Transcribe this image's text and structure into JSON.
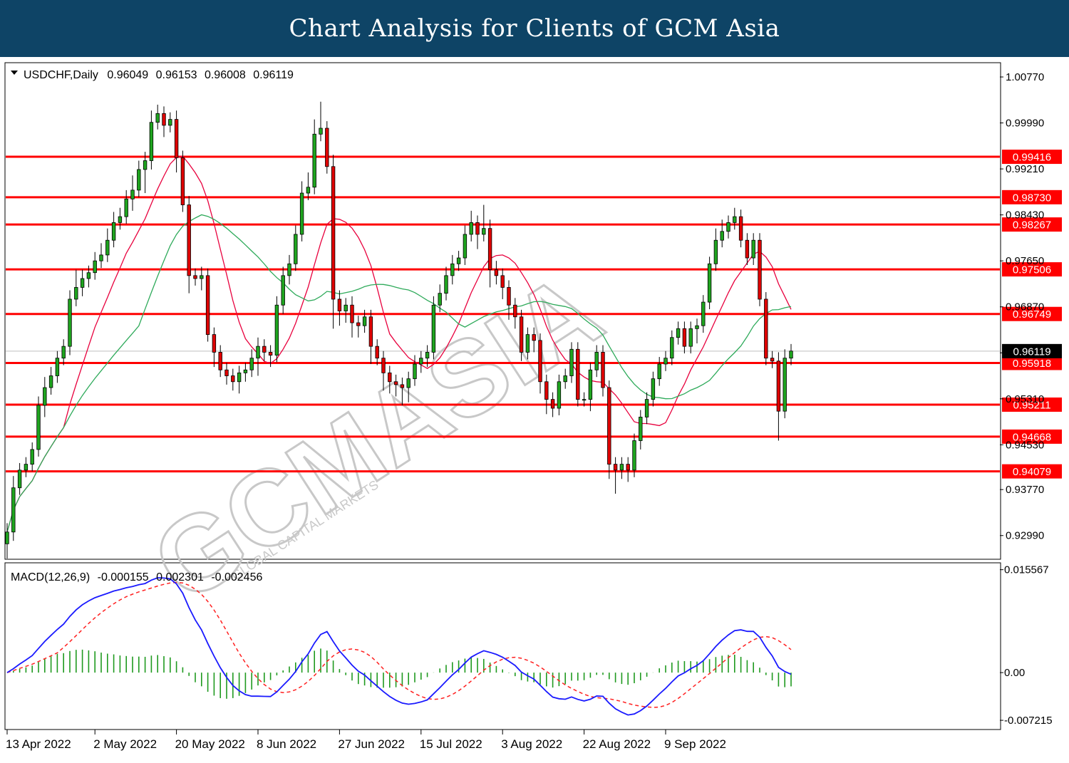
{
  "header": {
    "title": "Chart Analysis for Clients of GCM Asia"
  },
  "watermark": {
    "brand": "GCMASIA",
    "sub": "GLOBAL CAPITAL MARKETS",
    "icon": "gcm-logo-watermark"
  },
  "chart_data": [
    {
      "type": "candlestick",
      "title": "USDCHF,Daily",
      "ohlc_readout": [
        "0.96049",
        "0.96153",
        "0.96008",
        "0.96119"
      ],
      "ylim": [
        0.926,
        1.01
      ],
      "y_ticks": [
        "1.00770",
        "0.99990",
        "0.99210",
        "0.98430",
        "0.97650",
        "0.96870",
        "0.96090",
        "0.95310",
        "0.94530",
        "0.93770",
        "0.92990"
      ],
      "y_tick_values": [
        1.0077,
        0.9999,
        0.9921,
        0.9843,
        0.9765,
        0.9687,
        0.9609,
        0.9531,
        0.9453,
        0.9377,
        0.9299
      ],
      "current_price": {
        "value": 0.96119,
        "label": "0.96119"
      },
      "levels": [
        {
          "value": 0.99416,
          "label": "0.99416"
        },
        {
          "value": 0.9873,
          "label": "0.98730"
        },
        {
          "value": 0.98267,
          "label": "0.98267"
        },
        {
          "value": 0.97506,
          "label": "0.97506"
        },
        {
          "value": 0.96749,
          "label": "0.96749"
        },
        {
          "value": 0.95918,
          "label": "0.95918"
        },
        {
          "value": 0.95211,
          "label": "0.95211"
        },
        {
          "value": 0.94668,
          "label": "0.94668"
        },
        {
          "value": 0.94079,
          "label": "0.94079"
        }
      ],
      "x_labels": [
        {
          "index": 0,
          "label": "13 Apr 2022"
        },
        {
          "index": 14,
          "label": "2 May 2022"
        },
        {
          "index": 27,
          "label": "20 May 2022"
        },
        {
          "index": 40,
          "label": "8 Jun 2022"
        },
        {
          "index": 53,
          "label": "27 Jun 2022"
        },
        {
          "index": 66,
          "label": "15 Jul 2022"
        },
        {
          "index": 79,
          "label": "3 Aug 2022"
        },
        {
          "index": 92,
          "label": "22 Aug 2022"
        },
        {
          "index": 105,
          "label": "9 Sep 2022"
        }
      ],
      "series": [
        {
          "name": "MA fast",
          "color": "#e8003d"
        },
        {
          "name": "MA slow",
          "color": "#2eaa5a"
        }
      ],
      "closes": [
        0.9305,
        0.938,
        0.941,
        0.942,
        0.9445,
        0.952,
        0.955,
        0.957,
        0.96,
        0.962,
        0.97,
        0.972,
        0.9735,
        0.9745,
        0.9765,
        0.9775,
        0.98,
        0.983,
        0.984,
        0.987,
        0.9885,
        0.992,
        0.9935,
        1.0,
        1.0015,
        0.9995,
        1.0005,
        0.994,
        0.986,
        0.974,
        0.9735,
        0.974,
        0.964,
        0.961,
        0.958,
        0.957,
        0.956,
        0.9575,
        0.958,
        0.96,
        0.962,
        0.961,
        0.9605,
        0.969,
        0.974,
        0.976,
        0.981,
        0.988,
        0.989,
        0.998,
        0.999,
        0.9925,
        0.97,
        0.968,
        0.969,
        0.966,
        0.9655,
        0.967,
        0.962,
        0.96,
        0.9575,
        0.956,
        0.9555,
        0.955,
        0.9565,
        0.959,
        0.96,
        0.961,
        0.969,
        0.971,
        0.974,
        0.976,
        0.977,
        0.981,
        0.983,
        0.981,
        0.982,
        0.975,
        0.974,
        0.972,
        0.969,
        0.967,
        0.961,
        0.964,
        0.963,
        0.956,
        0.953,
        0.9515,
        0.956,
        0.957,
        0.9615,
        0.953,
        0.953,
        0.958,
        0.961,
        0.955,
        0.942,
        0.941,
        0.942,
        0.941,
        0.946,
        0.95,
        0.953,
        0.9565,
        0.959,
        0.96,
        0.9635,
        0.965,
        0.962,
        0.965,
        0.9655,
        0.9695,
        0.976,
        0.98,
        0.9815,
        0.983,
        0.984,
        0.98,
        0.977,
        0.98,
        0.97,
        0.96,
        0.9595,
        0.951,
        0.96,
        0.9612
      ],
      "wick_up": [
        0.0015,
        0.002,
        0.0012,
        0.0012,
        0.0012,
        0.0015,
        0.0018,
        0.0015,
        0.0012,
        0.0012,
        0.0015,
        0.003,
        0.0015,
        0.0012,
        0.0015,
        0.002,
        0.002,
        0.0018,
        0.0015,
        0.0015,
        0.0025,
        0.0015,
        0.0015,
        0.002,
        0.0015,
        0.0012,
        0.0012,
        0.0015,
        0.0012,
        0.0015,
        0.0012,
        0.0015,
        0.0012,
        0.0012,
        0.0012,
        0.0012,
        0.0012,
        0.0012,
        0.0012,
        0.0015,
        0.0015,
        0.0012,
        0.0012,
        0.0015,
        0.0015,
        0.0015,
        0.0015,
        0.002,
        0.0025,
        0.0025,
        0.0045,
        0.0012,
        0.002,
        0.0015,
        0.0012,
        0.0015,
        0.0012,
        0.0012,
        0.0012,
        0.0012,
        0.0012,
        0.0012,
        0.0012,
        0.0012,
        0.0012,
        0.0015,
        0.0012,
        0.0012,
        0.0015,
        0.0015,
        0.0015,
        0.0015,
        0.0012,
        0.0015,
        0.002,
        0.0012,
        0.004,
        0.0015,
        0.0015,
        0.0012,
        0.0012,
        0.0012,
        0.0012,
        0.0012,
        0.0012,
        0.0012,
        0.0012,
        0.0012,
        0.0012,
        0.0012,
        0.0012,
        0.0012,
        0.0012,
        0.0012,
        0.0012,
        0.0012,
        0.0012,
        0.0012,
        0.0012,
        0.0012,
        0.0012,
        0.0012,
        0.0012,
        0.0012,
        0.0012,
        0.0012,
        0.0012,
        0.0012,
        0.0012,
        0.0012,
        0.0012,
        0.0012,
        0.0012,
        0.002,
        0.002,
        0.0012,
        0.0015,
        0.0012,
        0.0012,
        0.0012,
        0.0012,
        0.0012,
        0.0012,
        0.0015,
        0.0015,
        0.0012
      ],
      "wick_dn": [
        0.0025,
        0.0015,
        0.0012,
        0.0012,
        0.0012,
        0.0012,
        0.002,
        0.0012,
        0.0012,
        0.0012,
        0.0015,
        0.0012,
        0.0015,
        0.0015,
        0.0012,
        0.0012,
        0.0012,
        0.0012,
        0.0012,
        0.0012,
        0.002,
        0.0012,
        0.004,
        0.0015,
        0.0012,
        0.002,
        0.0012,
        0.0025,
        0.0012,
        0.003,
        0.0012,
        0.002,
        0.0012,
        0.0025,
        0.0012,
        0.0015,
        0.0015,
        0.002,
        0.0015,
        0.0012,
        0.003,
        0.0015,
        0.002,
        0.0012,
        0.0015,
        0.0015,
        0.0012,
        0.0012,
        0.0012,
        0.0012,
        0.0012,
        0.0012,
        0.005,
        0.0025,
        0.002,
        0.0025,
        0.002,
        0.0012,
        0.003,
        0.0012,
        0.003,
        0.002,
        0.002,
        0.003,
        0.0025,
        0.0012,
        0.0015,
        0.0015,
        0.0012,
        0.0012,
        0.0012,
        0.0015,
        0.0012,
        0.0012,
        0.0012,
        0.0025,
        0.0012,
        0.003,
        0.0015,
        0.002,
        0.0025,
        0.002,
        0.0015,
        0.0012,
        0.002,
        0.002,
        0.0025,
        0.0015,
        0.0012,
        0.0012,
        0.0012,
        0.0012,
        0.0012,
        0.002,
        0.0012,
        0.0015,
        0.0025,
        0.004,
        0.0015,
        0.002,
        0.0012,
        0.0015,
        0.0012,
        0.0012,
        0.0012,
        0.0012,
        0.0012,
        0.0012,
        0.0012,
        0.0012,
        0.0025,
        0.0012,
        0.0012,
        0.0012,
        0.0012,
        0.0012,
        0.0012,
        0.0012,
        0.0012,
        0.0012,
        0.0012,
        0.0012,
        0.0012,
        0.005,
        0.0012,
        0.0012
      ]
    },
    {
      "type": "macd",
      "title": "MACD(12,26,9)",
      "values_readout": [
        "-0.000155",
        "0.002301",
        "-0.002456"
      ],
      "ylim": [
        -0.0085,
        0.0165
      ],
      "y_ticks": [
        "0.015567",
        "0.00",
        "-0.007215"
      ],
      "y_tick_values": [
        0.015567,
        0.0,
        -0.007215
      ],
      "series": [
        {
          "name": "MACD",
          "color": "#1a1aff"
        },
        {
          "name": "Signal",
          "color": "#ff2020"
        },
        {
          "name": "Histogram",
          "color": "#1f9a1f"
        }
      ]
    }
  ]
}
